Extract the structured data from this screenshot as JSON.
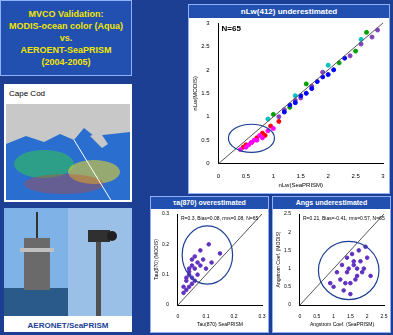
{
  "page": {
    "title": [
      "MVCO Validation:",
      "MODIS-ocean color (Aqua)",
      "vs.",
      "AEROENT-SeaPRISM",
      "(2004-2005)"
    ],
    "map_label": "Cape Cod",
    "photo_label": "AERONET/SeaPRISM"
  },
  "chart_data": [
    {
      "type": "scatter",
      "title": "nLw(412) underestimated",
      "annotation": "N=65",
      "x_label": "nLw(SeaPRISM)",
      "y_label": "nLw(MODIS)",
      "xlim": [
        0,
        3
      ],
      "ylim": [
        0,
        3
      ],
      "xticks": [
        0,
        0.5,
        1,
        1.5,
        2,
        2.5,
        3
      ],
      "yticks": [
        0,
        0.5,
        1,
        1.5,
        2,
        2.5,
        3
      ],
      "grid": false,
      "series": [
        {
          "color": "#ff00ff",
          "x": [
            0.4,
            0.5,
            0.6,
            0.7,
            0.8,
            0.9,
            1.0,
            0.55,
            0.65,
            0.75
          ],
          "values": [
            0.3,
            0.35,
            0.45,
            0.5,
            0.55,
            0.7,
            0.75,
            0.4,
            0.5,
            0.6
          ]
        },
        {
          "color": "#ff0000",
          "x": [
            0.45,
            0.6,
            0.7,
            0.85,
            0.95,
            1.1,
            0.5,
            0.8
          ],
          "values": [
            0.35,
            0.45,
            0.55,
            0.6,
            0.8,
            0.9,
            0.4,
            0.65
          ]
        },
        {
          "color": "#0000ff",
          "x": [
            1.2,
            1.4,
            1.5,
            1.7,
            1.9,
            2.1,
            1.3,
            1.6,
            1.8,
            2.0,
            2.3
          ],
          "values": [
            1.1,
            1.3,
            1.45,
            1.6,
            1.85,
            2.0,
            1.25,
            1.5,
            1.75,
            1.9,
            2.25
          ]
        },
        {
          "color": "#00a000",
          "x": [
            1.0,
            1.3,
            1.6,
            2.2,
            2.5,
            2.7
          ],
          "values": [
            1.05,
            1.2,
            1.7,
            2.15,
            2.4,
            2.8
          ]
        },
        {
          "color": "#8040c0",
          "x": [
            1.1,
            1.5,
            1.9,
            2.4,
            2.8,
            1.2,
            1.7,
            2.6,
            2.9,
            1.4
          ],
          "values": [
            1.0,
            1.4,
            1.95,
            2.3,
            2.7,
            1.15,
            1.65,
            2.55,
            2.85,
            1.35
          ]
        },
        {
          "color": "#00c0c0",
          "x": [
            0.9,
            1.4,
            2.0,
            2.6
          ],
          "values": [
            0.95,
            1.45,
            2.1,
            2.65
          ]
        }
      ]
    },
    {
      "type": "scatter",
      "title": "τa(870) overestimated",
      "annotation": "R=0.3, Bias=0.08, rms=0.08, N=65",
      "x_label": "Tau(870) SeaPRISM",
      "y_label": "Tau(870) (MODIS)",
      "xlim": [
        0,
        0.3
      ],
      "ylim": [
        0,
        0.3
      ],
      "xticks": [
        0,
        0.1,
        0.2,
        0.3
      ],
      "yticks": [
        0,
        0.1,
        0.2,
        0.3
      ],
      "grid": false,
      "series": [
        {
          "color": "#6030c0",
          "x": [
            0.02,
            0.03,
            0.04,
            0.05,
            0.06,
            0.07,
            0.08,
            0.03,
            0.05,
            0.04,
            0.06,
            0.09,
            0.1,
            0.02,
            0.07,
            0.05,
            0.04,
            0.08,
            0.03,
            0.06,
            0.12,
            0.15,
            0.11,
            0.05,
            0.04
          ],
          "values": [
            0.06,
            0.08,
            0.1,
            0.09,
            0.12,
            0.14,
            0.13,
            0.05,
            0.07,
            0.11,
            0.16,
            0.15,
            0.12,
            0.04,
            0.1,
            0.13,
            0.06,
            0.18,
            0.09,
            0.08,
            0.14,
            0.17,
            0.2,
            0.15,
            0.12
          ]
        }
      ]
    },
    {
      "type": "scatter",
      "title": "Angs underestimated",
      "annotation": "R=0.21, Bias=-0.41, rms=0.57, N=65",
      "x_label": "Angstrom Coef. (SeaPRISM)",
      "y_label": "Angstrom Coef. (MODIS)",
      "xlim": [
        0,
        2.5
      ],
      "ylim": [
        0,
        2.5
      ],
      "xticks": [
        0,
        0.5,
        1,
        1.5,
        2,
        2.5
      ],
      "yticks": [
        0,
        0.5,
        1,
        1.5,
        2,
        2.5
      ],
      "grid": false,
      "series": [
        {
          "color": "#6030c0",
          "x": [
            1.0,
            1.2,
            1.4,
            1.5,
            1.6,
            1.7,
            1.8,
            1.9,
            1.3,
            1.1,
            1.55,
            1.65,
            1.75,
            2.0,
            1.45,
            1.35,
            1.85,
            1.25,
            1.95,
            1.5,
            0.9,
            1.6,
            1.7,
            1.4,
            2.1
          ],
          "values": [
            0.5,
            0.7,
            0.9,
            0.6,
            1.1,
            0.8,
            1.2,
            1.0,
            0.4,
            0.9,
            1.4,
            0.7,
            1.5,
            1.3,
            1.0,
            0.6,
            0.9,
            1.1,
            1.6,
            0.3,
            0.6,
            1.2,
            1.0,
            1.3,
            0.8
          ]
        }
      ]
    }
  ]
}
